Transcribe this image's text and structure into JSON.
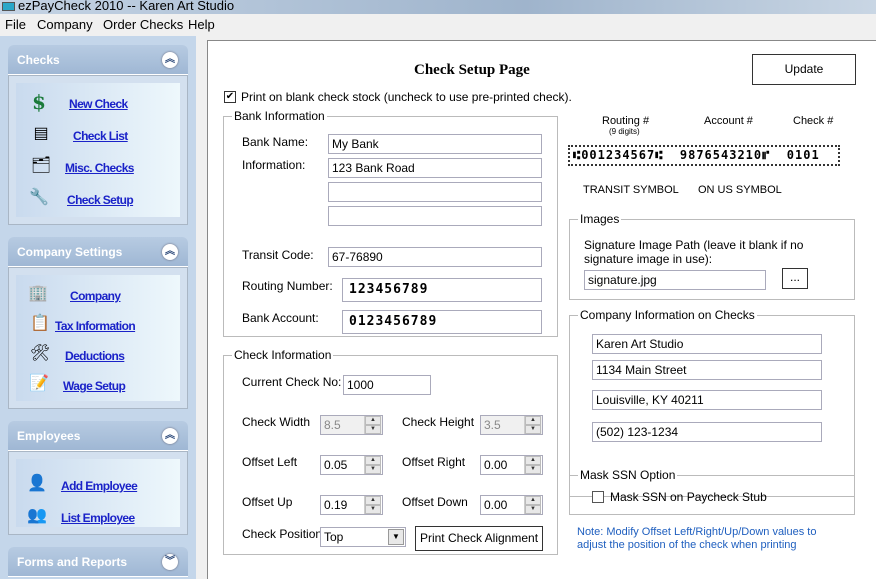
{
  "window": {
    "title": "ezPayCheck 2010 -- Karen Art Studio"
  },
  "menu": [
    "File",
    "Company",
    "Order Checks",
    "Help"
  ],
  "sidebar": {
    "checks": {
      "title": "Checks",
      "items": [
        "New Check",
        "Check List",
        "Misc. Checks",
        "Check Setup"
      ]
    },
    "company": {
      "title": "Company Settings",
      "items": [
        "Company",
        "Tax Information",
        "Deductions",
        "Wage Setup"
      ]
    },
    "employees": {
      "title": "Employees",
      "items": [
        "Add Employee",
        "List Employee"
      ]
    },
    "forms": {
      "title": "Forms and Reports"
    }
  },
  "page": {
    "title": "Check Setup Page",
    "update": "Update",
    "blank_stock": {
      "label": "Print on blank check stock (uncheck to use pre-printed check).",
      "checked": true
    }
  },
  "bank": {
    "legend": "Bank Information",
    "name_label": "Bank Name:",
    "name": "My Bank",
    "info_label": "Information:",
    "info": [
      "123 Bank Road",
      "",
      ""
    ],
    "transit_label": "Transit Code:",
    "transit": "67-76890",
    "routing_label": "Routing Number:",
    "routing": "123456789",
    "account_label": "Bank Account:",
    "account": "0123456789"
  },
  "check": {
    "legend": "Check Information",
    "current_label": "Current Check No:",
    "current": "1000",
    "width_label": "Check Width",
    "width": "8.5",
    "height_label": "Check Height",
    "height": "3.5",
    "left_label": "Offset Left",
    "left": "0.05",
    "right_label": "Offset Right",
    "right": "0.00",
    "up_label": "Offset Up",
    "up": "0.19",
    "down_label": "Offset Down",
    "down": "0.00",
    "position_label": "Check Position",
    "position": "Top",
    "print_align": "Print Check Alignment"
  },
  "micr": {
    "routing": "Routing #",
    "digits": "(9 digits)",
    "account": "Account #",
    "check": "Check #",
    "line": "⑆001234567⑆  9876543210⑈  0101",
    "transit": "TRANSIT SYMBOL",
    "onus": "ON US SYMBOL"
  },
  "images": {
    "legend": "Images",
    "sig_label": "Signature Image Path (leave it blank if no signature image in use):",
    "sig": "signature.jpg",
    "browse": "..."
  },
  "company_info": {
    "legend": "Company Information on Checks",
    "lines": [
      "Karen Art Studio",
      "1134 Main Street",
      "Louisville, KY 40211",
      "(502) 123-1234"
    ]
  },
  "mask": {
    "legend": "Mask SSN Option",
    "label": "Mask SSN on Paycheck Stub",
    "checked": false
  },
  "note": "Note: Modify Offset Left/Right/Up/Down values to adjust the position of  the check when printing",
  "colors": {
    "link": "#1a22c8",
    "note": "#1f5fbf",
    "sidebar": "#c4d6ea"
  }
}
